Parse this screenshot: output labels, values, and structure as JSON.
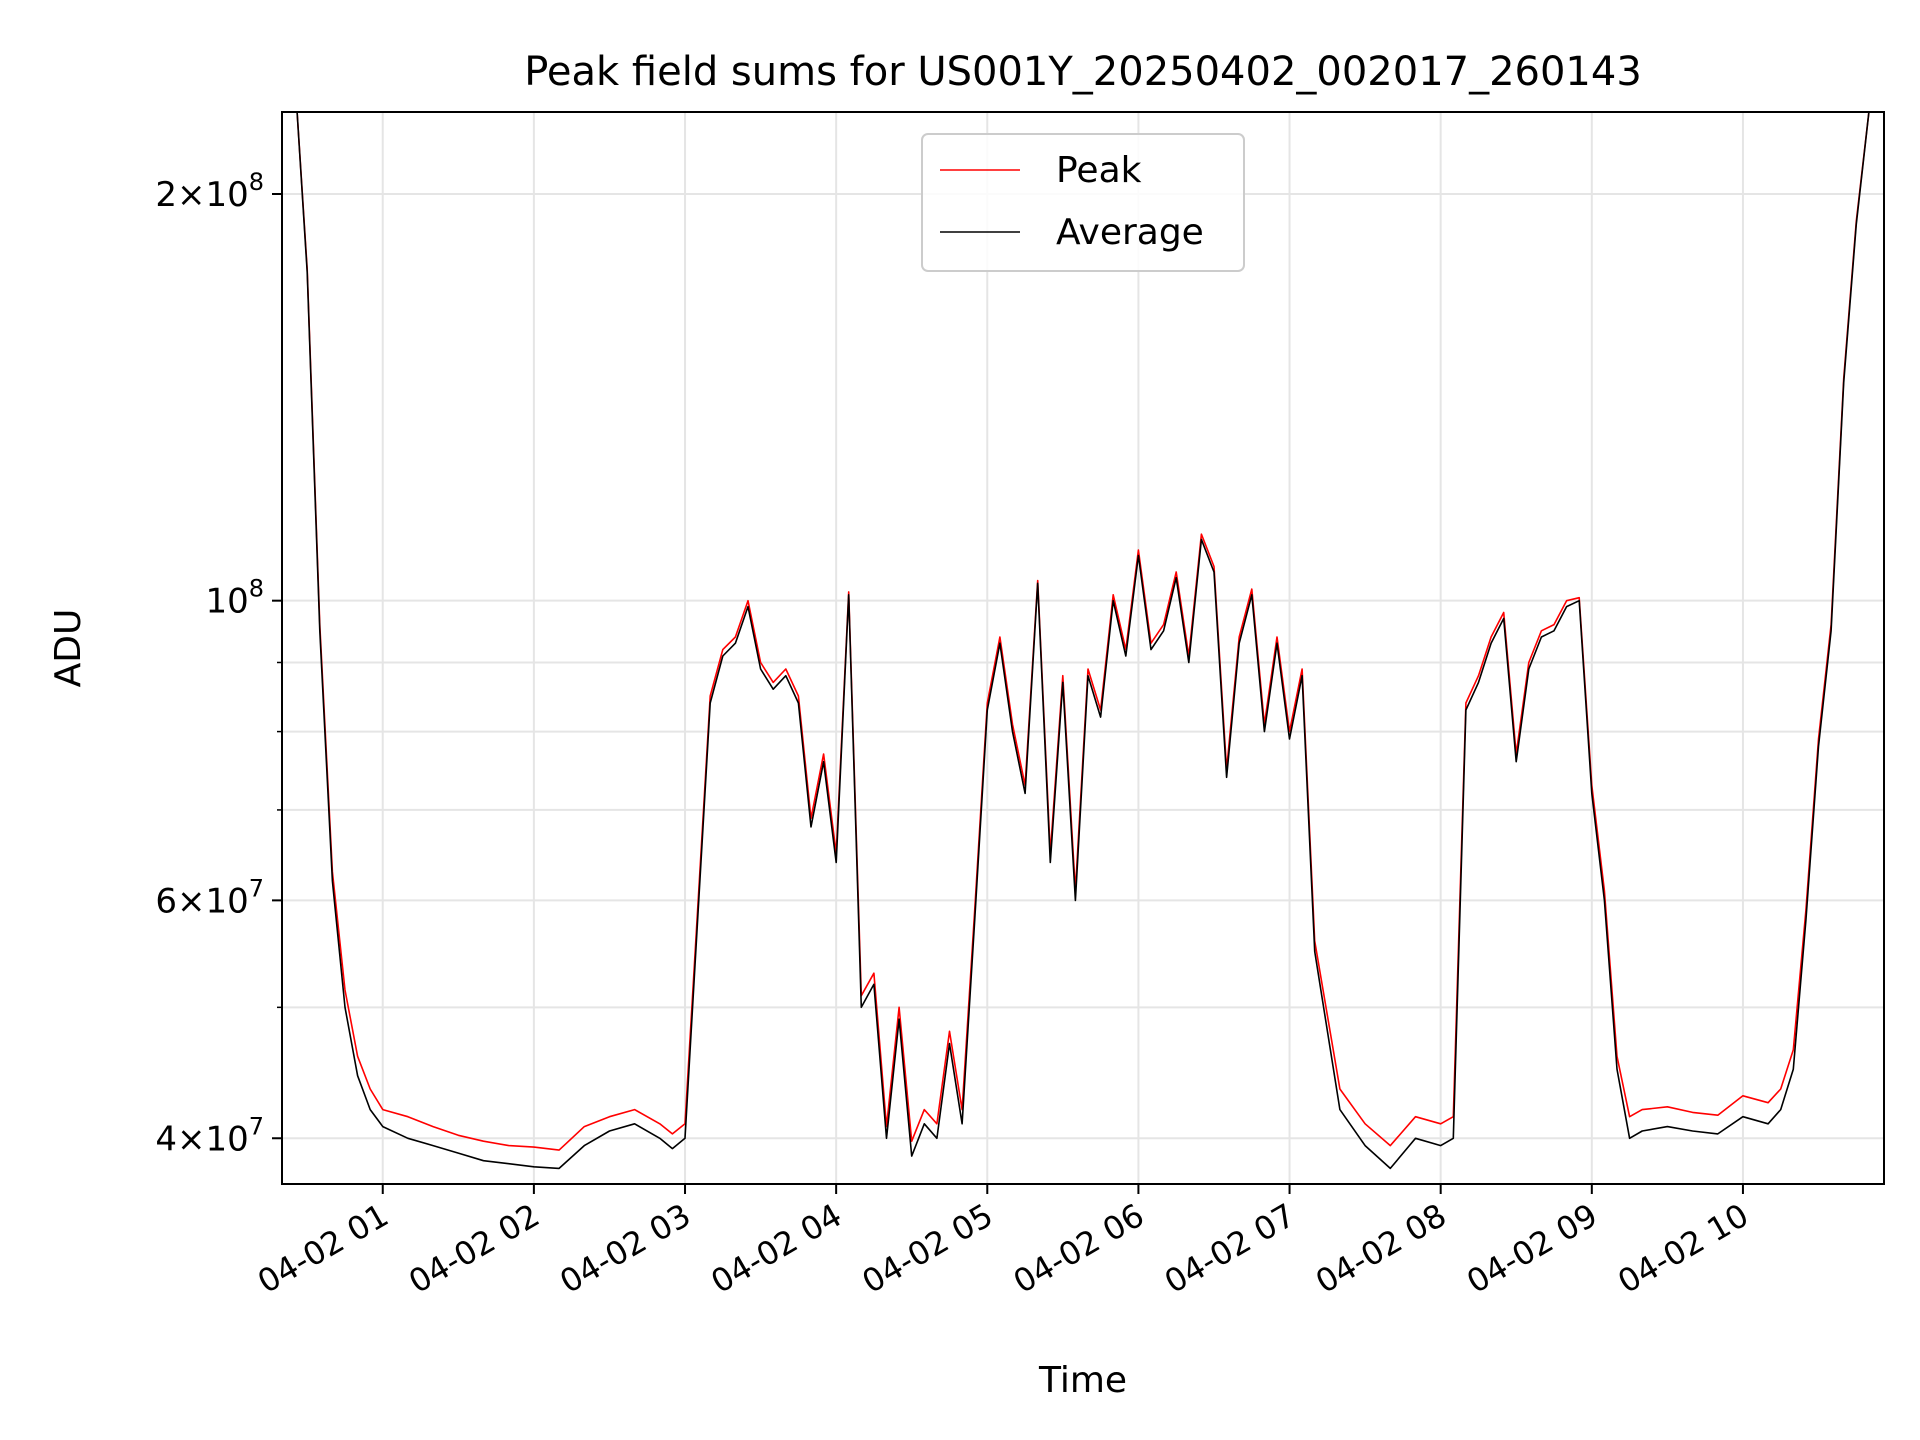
{
  "chart_data": {
    "type": "line",
    "title": "Peak field sums for US001Y_20250402_002017_260143",
    "xlabel": "Time",
    "ylabel": "ADU",
    "yscale": "log",
    "grid": true,
    "legend_position": "upper center",
    "xlim": [
      "2025-04-02 00:20",
      "2025-04-02 10:56"
    ],
    "ylim": [
      37000000,
      230000000
    ],
    "x_ticks": [
      "04-02 01",
      "04-02 02",
      "04-02 03",
      "04-02 04",
      "04-02 05",
      "04-02 06",
      "04-02 07",
      "04-02 08",
      "04-02 09",
      "04-02 10"
    ],
    "y_ticks": [
      {
        "value": 40000000,
        "mantissa": "4",
        "exp": "7"
      },
      {
        "value": 60000000,
        "mantissa": "6",
        "exp": "7"
      },
      {
        "value": 100000000,
        "mantissa": "",
        "exp": "8"
      },
      {
        "value": 200000000,
        "mantissa": "2",
        "exp": "8"
      }
    ],
    "series": [
      {
        "name": "Peak",
        "color": "#ff0000"
      },
      {
        "name": "Average",
        "color": "#000000"
      }
    ],
    "x": [
      "00:26",
      "00:30",
      "00:35",
      "00:40",
      "00:45",
      "00:50",
      "00:55",
      "01:00",
      "01:10",
      "01:20",
      "01:30",
      "01:40",
      "01:50",
      "02:00",
      "02:10",
      "02:20",
      "02:30",
      "02:40",
      "02:50",
      "02:55",
      "03:00",
      "03:05",
      "03:10",
      "03:15",
      "03:20",
      "03:25",
      "03:30",
      "03:35",
      "03:40",
      "03:45",
      "03:50",
      "03:55",
      "04:00",
      "04:05",
      "04:10",
      "04:15",
      "04:20",
      "04:25",
      "04:30",
      "04:35",
      "04:40",
      "04:45",
      "04:50",
      "04:55",
      "05:00",
      "05:05",
      "05:10",
      "05:15",
      "05:20",
      "05:25",
      "05:30",
      "05:35",
      "05:40",
      "05:45",
      "05:50",
      "05:55",
      "06:00",
      "06:05",
      "06:10",
      "06:15",
      "06:20",
      "06:25",
      "06:30",
      "06:35",
      "06:40",
      "06:45",
      "06:50",
      "06:55",
      "07:00",
      "07:05",
      "07:10",
      "07:20",
      "07:30",
      "07:40",
      "07:50",
      "08:00",
      "08:05",
      "08:10",
      "08:15",
      "08:20",
      "08:25",
      "08:30",
      "08:35",
      "08:40",
      "08:45",
      "08:50",
      "08:55",
      "09:00",
      "09:05",
      "09:10",
      "09:15",
      "09:20",
      "09:30",
      "09:40",
      "09:50",
      "10:00",
      "10:10",
      "10:15",
      "10:20",
      "10:25",
      "10:30",
      "10:35",
      "10:40",
      "10:45",
      "10:50"
    ],
    "average_values": [
      230000000,
      175000000,
      95000000,
      62000000,
      50000000,
      44500000,
      42000000,
      40800000,
      40000000,
      39500000,
      39000000,
      38500000,
      38300000,
      38100000,
      38000000,
      39500000,
      40500000,
      41000000,
      40000000,
      39300000,
      40000000,
      58000000,
      84000000,
      91000000,
      93000000,
      99000000,
      89000000,
      86000000,
      88000000,
      84000000,
      68000000,
      76000000,
      64000000,
      101000000,
      50000000,
      52000000,
      40000000,
      49000000,
      38800000,
      41000000,
      40000000,
      47000000,
      41000000,
      58000000,
      83000000,
      93000000,
      80000000,
      72000000,
      103000000,
      64000000,
      87000000,
      60000000,
      88000000,
      82000000,
      100000000,
      91000000,
      108000000,
      92000000,
      95000000,
      104000000,
      90000000,
      111000000,
      105000000,
      74000000,
      93000000,
      101000000,
      80000000,
      93000000,
      79000000,
      88000000,
      55000000,
      42000000,
      39500000,
      38000000,
      40000000,
      39500000,
      40000000,
      83000000,
      87000000,
      93000000,
      97000000,
      76000000,
      89000000,
      94000000,
      95000000,
      99000000,
      100000000,
      72000000,
      60000000,
      45000000,
      40000000,
      40500000,
      40800000,
      40500000,
      40300000,
      41500000,
      41000000,
      42000000,
      45000000,
      58000000,
      78000000,
      95000000,
      145000000,
      190000000,
      230000000
    ],
    "peak_values": [
      230000000,
      176000000,
      96000000,
      63000000,
      51500000,
      46000000,
      43500000,
      42000000,
      41500000,
      40800000,
      40200000,
      39800000,
      39500000,
      39400000,
      39200000,
      40800000,
      41500000,
      42000000,
      41000000,
      40300000,
      41000000,
      59000000,
      85000000,
      92000000,
      94000000,
      100000000,
      90000000,
      87000000,
      89000000,
      85000000,
      69000000,
      77000000,
      65000000,
      101500000,
      51000000,
      53000000,
      40800000,
      50000000,
      39800000,
      42000000,
      41000000,
      48000000,
      42000000,
      59000000,
      84000000,
      94000000,
      81000000,
      73000000,
      103500000,
      65000000,
      88000000,
      61000000,
      89000000,
      83000000,
      101000000,
      92000000,
      109000000,
      93000000,
      96000000,
      105000000,
      91000000,
      112000000,
      106000000,
      75000000,
      94000000,
      102000000,
      81000000,
      94000000,
      80000000,
      89000000,
      56000000,
      43500000,
      41000000,
      39500000,
      41500000,
      41000000,
      41500000,
      84000000,
      88000000,
      94000000,
      98000000,
      77000000,
      90000000,
      95000000,
      96000000,
      100000000,
      100500000,
      73000000,
      61000000,
      46000000,
      41500000,
      42000000,
      42200000,
      41800000,
      41600000,
      43000000,
      42500000,
      43500000,
      46500000,
      59000000,
      79000000,
      96000000,
      146000000,
      191000000,
      230000000
    ]
  }
}
